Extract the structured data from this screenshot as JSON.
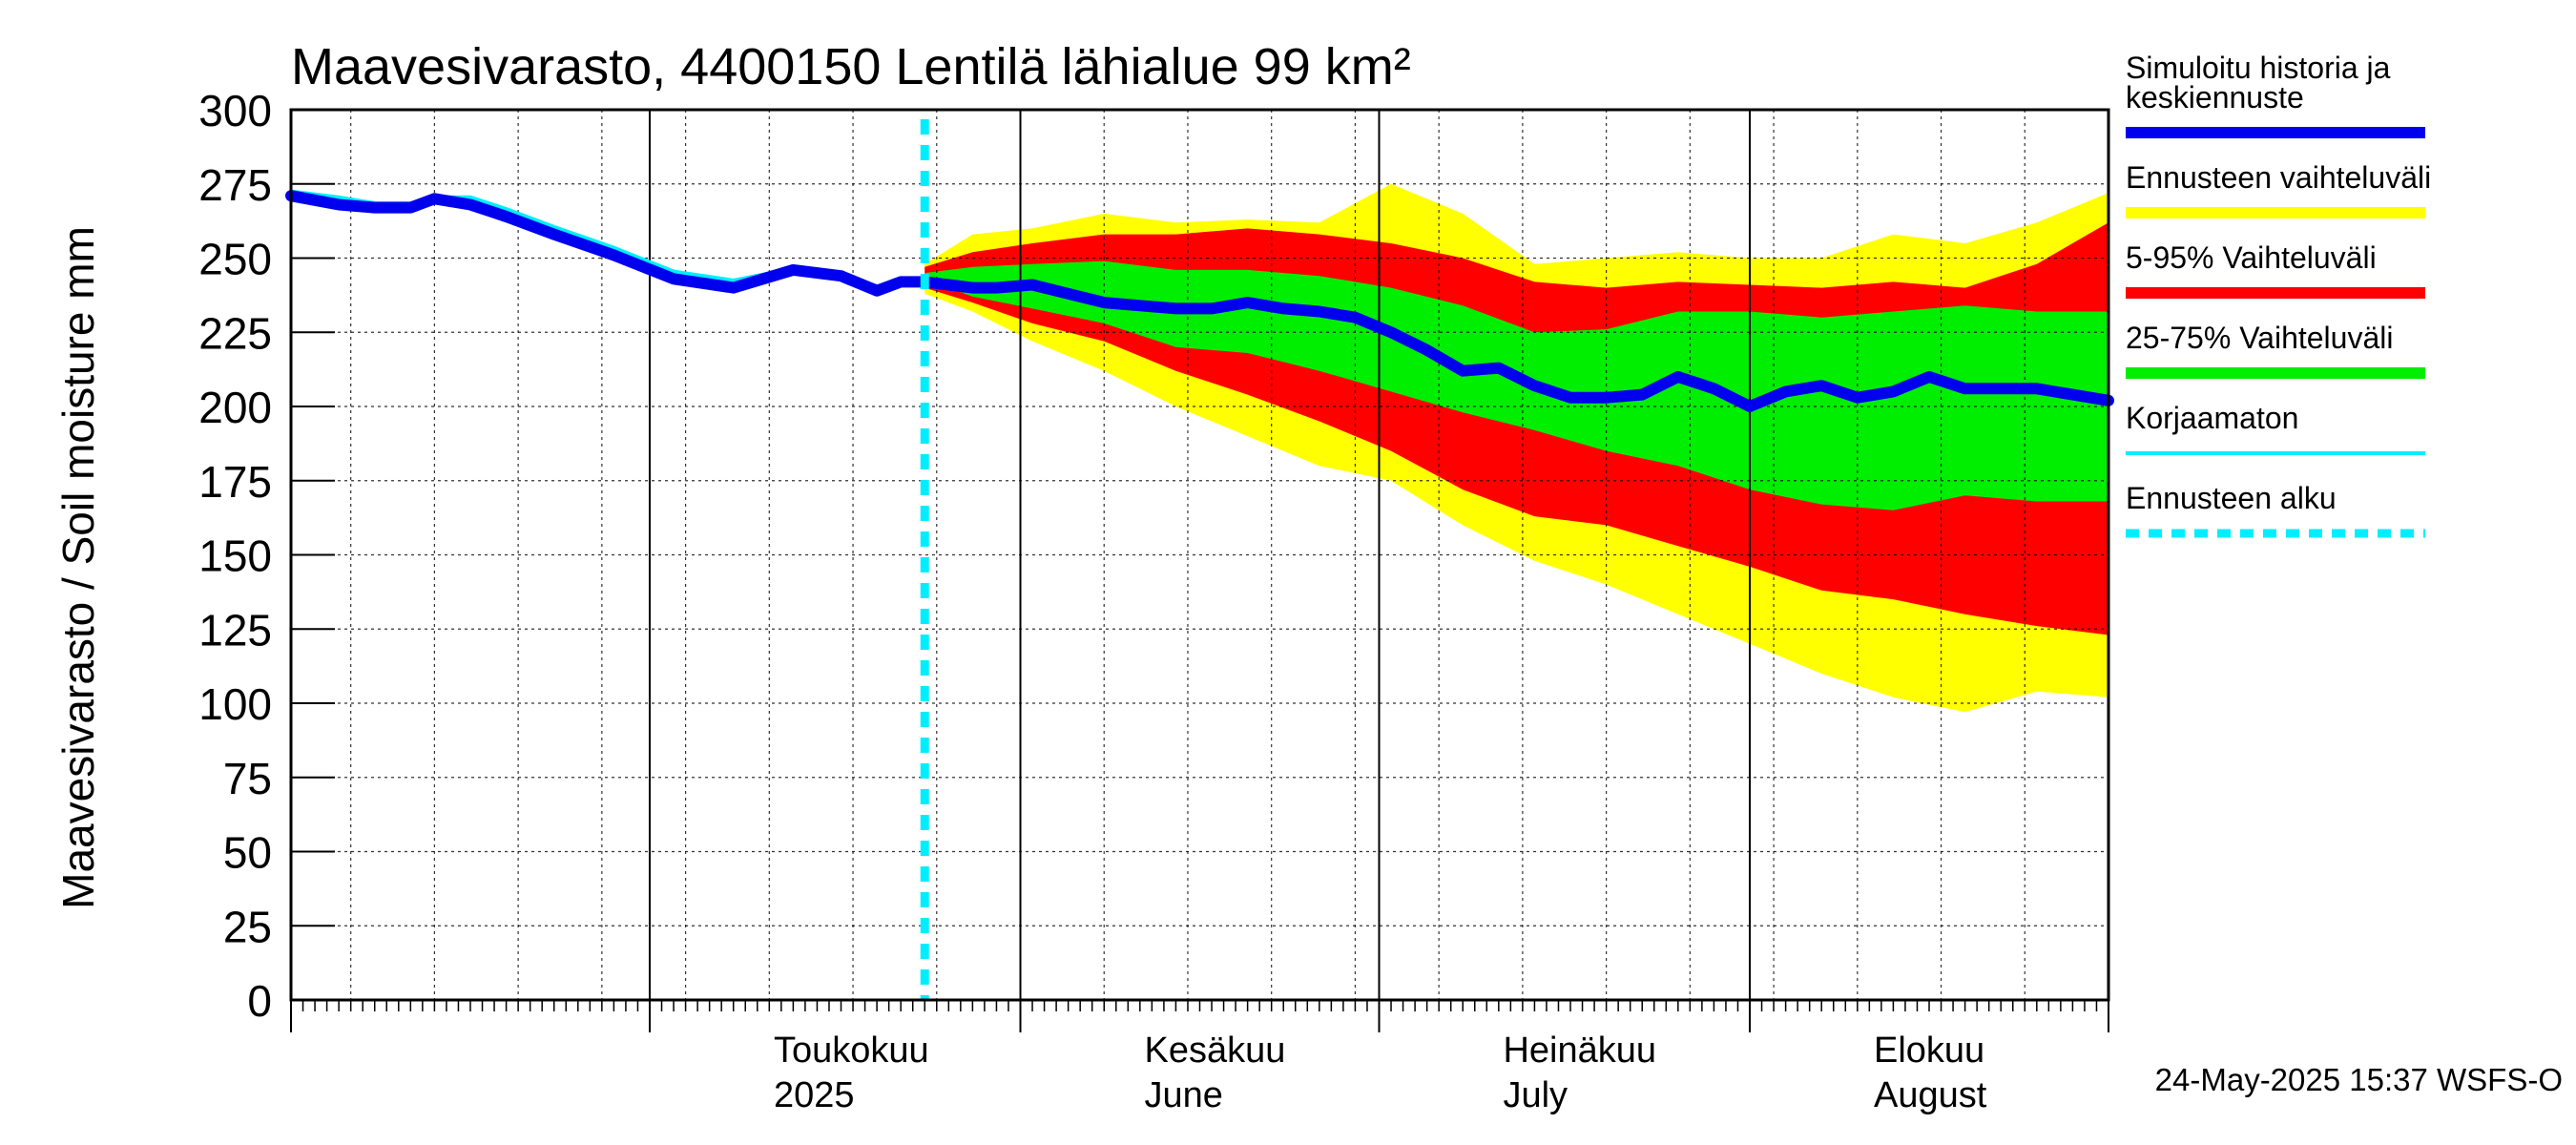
{
  "chart_data": {
    "type": "area",
    "title": "Maavesivarasto, 4400150 Lentilä lähialue 99 km²",
    "ylabel": "Maavesivarasto / Soil moisture   mm",
    "ylim": [
      0,
      300
    ],
    "yticks": [
      0,
      25,
      50,
      75,
      100,
      125,
      150,
      175,
      200,
      225,
      250,
      275,
      300
    ],
    "xlim": [
      "2025-04-01",
      "2025-08-31"
    ],
    "grid": true,
    "forecast_start": "2025-05-24",
    "month_labels": [
      {
        "date": "2025-05-01",
        "line1": "Toukokuu",
        "line2": "2025"
      },
      {
        "date": "2025-06-01",
        "line1": "Kesäkuu",
        "line2": "June"
      },
      {
        "date": "2025-07-01",
        "line1": "Heinäkuu",
        "line2": "July"
      },
      {
        "date": "2025-08-01",
        "line1": "Elokuu",
        "line2": "August"
      }
    ],
    "legend": [
      {
        "label": "Simuloitu historia ja keskiennuste",
        "label_line1": "Simuloitu historia ja",
        "label_line2": "keskiennuste",
        "color": "#0000ee",
        "kind": "line"
      },
      {
        "label": "Ennusteen vaihteluväli",
        "color": "#ffff00",
        "kind": "band"
      },
      {
        "label": "5-95% Vaihteluväli",
        "color": "#ff0000",
        "kind": "band"
      },
      {
        "label": "25-75% Vaihteluväli",
        "color": "#00ee00",
        "kind": "band"
      },
      {
        "label": "Korjaamaton",
        "color": "#00eeff",
        "kind": "line"
      },
      {
        "label": "Ennusteen alku",
        "color": "#00eeff",
        "kind": "dashed"
      }
    ],
    "series": [
      {
        "name": "Simuloitu historia ja keskiennuste",
        "color": "#0000ee",
        "x": [
          "2025-04-01",
          "2025-04-05",
          "2025-04-08",
          "2025-04-11",
          "2025-04-13",
          "2025-04-16",
          "2025-04-19",
          "2025-04-23",
          "2025-04-28",
          "2025-05-03",
          "2025-05-08",
          "2025-05-13",
          "2025-05-17",
          "2025-05-20",
          "2025-05-22",
          "2025-05-24",
          "2025-05-26",
          "2025-05-28",
          "2025-05-30",
          "2025-06-02",
          "2025-06-05",
          "2025-06-08",
          "2025-06-11",
          "2025-06-14",
          "2025-06-17",
          "2025-06-20",
          "2025-06-23",
          "2025-06-26",
          "2025-06-29",
          "2025-07-02",
          "2025-07-05",
          "2025-07-08",
          "2025-07-11",
          "2025-07-14",
          "2025-07-17",
          "2025-07-20",
          "2025-07-23",
          "2025-07-26",
          "2025-07-29",
          "2025-08-01",
          "2025-08-04",
          "2025-08-07",
          "2025-08-10",
          "2025-08-13",
          "2025-08-16",
          "2025-08-19",
          "2025-08-22",
          "2025-08-25",
          "2025-08-28",
          "2025-08-31"
        ],
        "y": [
          271,
          268,
          267,
          267,
          270,
          268,
          264,
          258,
          251,
          243,
          240,
          246,
          244,
          239,
          242,
          242,
          241,
          240,
          240,
          241,
          238,
          235,
          234,
          233,
          233,
          235,
          233,
          232,
          230,
          225,
          219,
          212,
          213,
          207,
          203,
          203,
          204,
          210,
          206,
          200,
          205,
          207,
          203,
          205,
          210,
          206,
          206,
          206,
          204,
          202
        ]
      },
      {
        "name": "Korjaamaton",
        "color": "#00eeff",
        "x": [
          "2025-04-01",
          "2025-04-05",
          "2025-04-08",
          "2025-04-11",
          "2025-04-13",
          "2025-04-16",
          "2025-04-19",
          "2025-04-23",
          "2025-04-28",
          "2025-05-03",
          "2025-05-08",
          "2025-05-13",
          "2025-05-17",
          "2025-05-20",
          "2025-05-22",
          "2025-05-24"
        ],
        "y": [
          272,
          270,
          268,
          268,
          270,
          270,
          266,
          260,
          253,
          245,
          242,
          246,
          244,
          240,
          242,
          242
        ]
      }
    ],
    "bands": [
      {
        "name": "Ennusteen vaihteluväli",
        "color": "#ffff00",
        "x": [
          "2025-05-24",
          "2025-05-28",
          "2025-06-02",
          "2025-06-08",
          "2025-06-14",
          "2025-06-20",
          "2025-06-26",
          "2025-07-02",
          "2025-07-08",
          "2025-07-14",
          "2025-07-20",
          "2025-07-26",
          "2025-08-01",
          "2025-08-07",
          "2025-08-13",
          "2025-08-19",
          "2025-08-25",
          "2025-08-31"
        ],
        "upper": [
          248,
          258,
          260,
          265,
          262,
          263,
          262,
          275,
          265,
          248,
          250,
          252,
          250,
          250,
          258,
          255,
          262,
          272
        ],
        "lower": [
          238,
          232,
          222,
          212,
          200,
          190,
          180,
          175,
          160,
          148,
          140,
          130,
          120,
          110,
          102,
          97,
          104,
          102
        ]
      },
      {
        "name": "5-95% Vaihteluväli",
        "color": "#ff0000",
        "x": [
          "2025-05-24",
          "2025-05-28",
          "2025-06-02",
          "2025-06-08",
          "2025-06-14",
          "2025-06-20",
          "2025-06-26",
          "2025-07-02",
          "2025-07-08",
          "2025-07-14",
          "2025-07-20",
          "2025-07-26",
          "2025-08-01",
          "2025-08-07",
          "2025-08-13",
          "2025-08-19",
          "2025-08-25",
          "2025-08-31"
        ],
        "upper": [
          247,
          252,
          255,
          258,
          258,
          260,
          258,
          255,
          250,
          242,
          240,
          242,
          241,
          240,
          242,
          240,
          248,
          262
        ],
        "lower": [
          240,
          235,
          228,
          222,
          212,
          204,
          195,
          185,
          172,
          163,
          160,
          153,
          146,
          138,
          135,
          130,
          126,
          123
        ]
      },
      {
        "name": "25-75% Vaihteluväli",
        "color": "#00ee00",
        "x": [
          "2025-05-24",
          "2025-05-28",
          "2025-06-02",
          "2025-06-08",
          "2025-06-14",
          "2025-06-20",
          "2025-06-26",
          "2025-07-02",
          "2025-07-08",
          "2025-07-14",
          "2025-07-20",
          "2025-07-26",
          "2025-08-01",
          "2025-08-07",
          "2025-08-13",
          "2025-08-19",
          "2025-08-25",
          "2025-08-31"
        ],
        "upper": [
          245,
          247,
          248,
          249,
          246,
          246,
          244,
          240,
          234,
          225,
          226,
          232,
          232,
          230,
          232,
          234,
          232,
          232
        ],
        "lower": [
          243,
          237,
          233,
          228,
          220,
          218,
          212,
          205,
          198,
          192,
          185,
          180,
          172,
          167,
          165,
          170,
          168,
          168
        ]
      }
    ]
  },
  "footer": {
    "timestamp": "24-May-2025 15:37 WSFS-O"
  }
}
